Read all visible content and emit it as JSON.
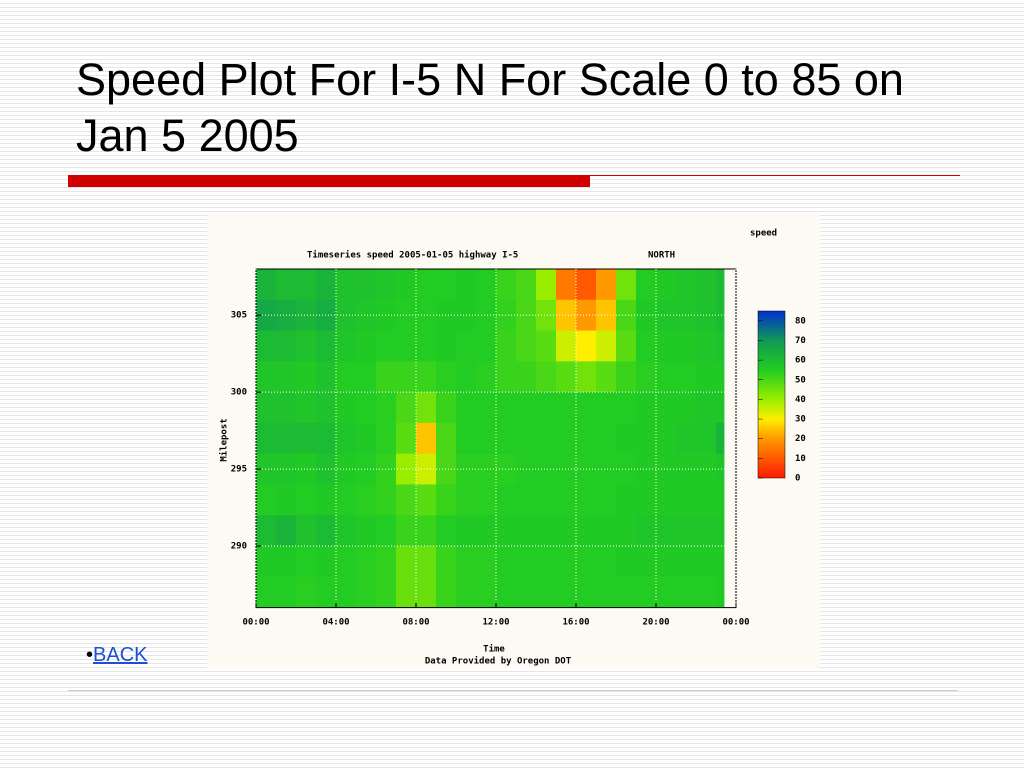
{
  "slide": {
    "title": "Speed Plot For I-5 N For Scale 0 to 85 on Jan 5 2005",
    "link": "BACK"
  },
  "chart_data": {
    "type": "heatmap",
    "title": "Timeseries speed 2005-01-05 highway I-5",
    "direction": "NORTH",
    "colorbar_label": "speed",
    "y_label": "Milepost",
    "x_label": "Time",
    "note": "Data Provided by Oregon DOT",
    "x_bins": [
      0,
      1,
      2,
      3,
      4,
      5,
      6,
      7,
      8,
      9,
      10,
      11,
      12,
      13,
      14,
      15,
      16,
      17,
      18,
      19,
      20,
      21,
      22,
      23,
      23.4
    ],
    "y_bins": [
      308,
      306,
      304,
      302,
      300,
      298,
      296,
      294,
      292,
      290,
      288,
      286
    ],
    "z": [
      [
        62,
        60,
        60,
        62,
        58,
        58,
        57,
        56,
        55,
        55,
        56,
        55,
        52,
        50,
        40,
        15,
        10,
        20,
        45,
        55,
        56,
        57,
        58,
        60
      ],
      [
        66,
        64,
        62,
        64,
        58,
        57,
        56,
        55,
        55,
        56,
        56,
        55,
        53,
        50,
        45,
        25,
        20,
        25,
        50,
        56,
        57,
        57,
        58,
        60
      ],
      [
        60,
        60,
        58,
        60,
        57,
        56,
        55,
        55,
        55,
        56,
        55,
        55,
        52,
        50,
        48,
        35,
        30,
        35,
        48,
        55,
        56,
        56,
        57,
        58
      ],
      [
        57,
        57,
        56,
        58,
        55,
        55,
        52,
        52,
        52,
        54,
        55,
        54,
        52,
        52,
        50,
        48,
        45,
        48,
        52,
        54,
        55,
        55,
        56,
        56
      ],
      [
        58,
        58,
        57,
        58,
        56,
        55,
        54,
        50,
        45,
        52,
        55,
        55,
        55,
        55,
        55,
        55,
        55,
        55,
        55,
        56,
        56,
        56,
        57,
        57
      ],
      [
        60,
        60,
        60,
        60,
        57,
        56,
        54,
        48,
        25,
        50,
        55,
        55,
        55,
        55,
        55,
        55,
        55,
        55,
        56,
        56,
        56,
        57,
        57,
        62
      ],
      [
        57,
        57,
        56,
        58,
        56,
        55,
        53,
        40,
        35,
        50,
        54,
        54,
        54,
        55,
        55,
        55,
        55,
        55,
        55,
        56,
        56,
        56,
        56,
        57
      ],
      [
        55,
        56,
        55,
        56,
        55,
        54,
        53,
        50,
        48,
        52,
        54,
        54,
        55,
        55,
        55,
        55,
        55,
        55,
        56,
        56,
        56,
        56,
        56,
        56
      ],
      [
        60,
        62,
        58,
        60,
        57,
        56,
        55,
        52,
        52,
        55,
        56,
        56,
        56,
        56,
        56,
        56,
        56,
        56,
        56,
        57,
        57,
        57,
        57,
        57
      ],
      [
        56,
        56,
        55,
        56,
        55,
        54,
        53,
        46,
        46,
        52,
        54,
        54,
        55,
        55,
        55,
        55,
        55,
        55,
        56,
        56,
        56,
        56,
        56,
        56
      ],
      [
        55,
        55,
        54,
        55,
        55,
        54,
        53,
        46,
        46,
        52,
        54,
        54,
        55,
        55,
        55,
        55,
        55,
        55,
        55,
        55,
        55,
        55,
        55,
        56
      ]
    ],
    "xlim": [
      0,
      24
    ],
    "xticks": [
      {
        "value": 0,
        "label": "00:00"
      },
      {
        "value": 4,
        "label": "04:00"
      },
      {
        "value": 8,
        "label": "08:00"
      },
      {
        "value": 12,
        "label": "12:00"
      },
      {
        "value": 16,
        "label": "16:00"
      },
      {
        "value": 20,
        "label": "20:00"
      },
      {
        "value": 24,
        "label": "00:00"
      }
    ],
    "ylim": [
      286,
      308
    ],
    "yticks": [
      290,
      295,
      300,
      305
    ],
    "clim": [
      0,
      85
    ],
    "cticks": [
      0,
      10,
      20,
      30,
      40,
      50,
      60,
      70,
      80
    ],
    "colorscale": [
      [
        0,
        "#ff1a00"
      ],
      [
        20,
        "#ff9900"
      ],
      [
        30,
        "#ffee00"
      ],
      [
        40,
        "#99ee00"
      ],
      [
        55,
        "#22cc22"
      ],
      [
        70,
        "#119955"
      ],
      [
        85,
        "#0030d0"
      ]
    ],
    "grid": true
  }
}
